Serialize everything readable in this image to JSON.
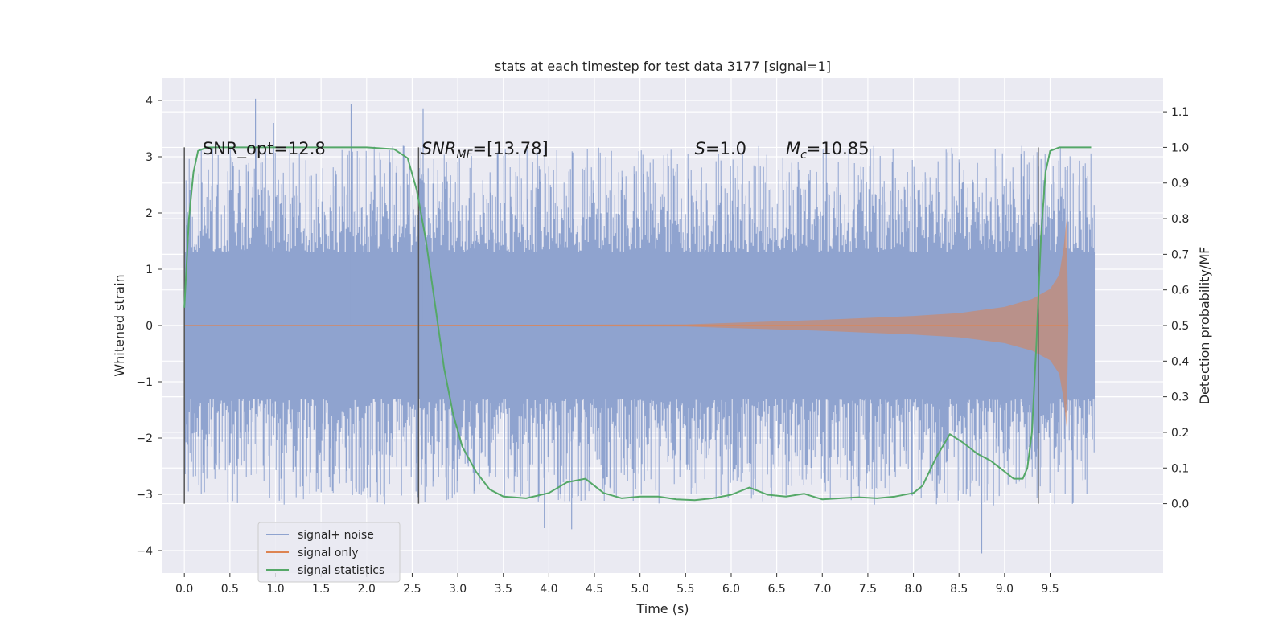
{
  "chart_data": {
    "type": "line",
    "title": "stats at each timestep for test data 3177 [signal=1]",
    "xlabel": "Time (s)",
    "ylabel": "Whitened strain",
    "y2label": "Detection probability/MF",
    "xlim": [
      -0.24,
      10.74
    ],
    "ylim": [
      -4.4,
      4.4
    ],
    "y2lim": [
      -0.195,
      1.195
    ],
    "grid": true,
    "x_ticks": [
      "0.0",
      "0.5",
      "1.0",
      "1.5",
      "2.0",
      "2.5",
      "3.0",
      "3.5",
      "4.0",
      "4.5",
      "5.0",
      "5.5",
      "6.0",
      "6.5",
      "7.0",
      "7.5",
      "8.0",
      "8.5",
      "9.0",
      "9.5"
    ],
    "y_ticks": [
      "4",
      "3",
      "2",
      "1",
      "0",
      "−1",
      "−2",
      "−3",
      "−4"
    ],
    "y2_ticks": [
      "1.1",
      "1.0",
      "0.9",
      "0.8",
      "0.7",
      "0.6",
      "0.5",
      "0.4",
      "0.3",
      "0.2",
      "0.1",
      "0.0"
    ],
    "legend_position": "lower-left",
    "annotations": [
      {
        "label": "SNR_opt=12.8",
        "x": 0.2,
        "y": 3.16
      },
      {
        "label": "SNR",
        "sub": "MF",
        "rest": "=[13.78]",
        "x": 2.6,
        "y": 3.16
      },
      {
        "label": "S",
        "rest": "=1.0",
        "x": 5.6,
        "y": 3.16
      },
      {
        "label": "M",
        "sub": "c",
        "rest": "=10.85",
        "x": 6.6,
        "y": 3.16
      }
    ],
    "vlines": [
      0.0,
      2.57,
      9.37
    ],
    "series": [
      {
        "name": "signal+ noise",
        "color": "#8fa3cf",
        "x_range": [
          0,
          9.99
        ],
        "band_y": [
          -1.3,
          1.3
        ],
        "peaks_y": [
          4.03,
          3.93,
          3.86,
          3.6,
          -3.6,
          -3.62,
          -4.05
        ]
      },
      {
        "name": "signal only",
        "color": "#dd8452",
        "envelope_x": [
          0.0,
          5.5,
          7.0,
          8.0,
          8.5,
          9.0,
          9.3,
          9.5,
          9.6,
          9.65,
          9.68,
          9.7
        ],
        "envelope_y": [
          0.0,
          0.02,
          0.1,
          0.17,
          0.22,
          0.33,
          0.47,
          0.65,
          0.9,
          1.4,
          1.9,
          0.0
        ]
      },
      {
        "name": "signal statistics",
        "color": "#55a868",
        "axis": "right",
        "x": [
          0.0,
          0.05,
          0.1,
          0.15,
          0.25,
          0.5,
          1.0,
          2.0,
          2.3,
          2.45,
          2.55,
          2.65,
          2.75,
          2.85,
          2.95,
          3.05,
          3.2,
          3.35,
          3.5,
          3.75,
          4.0,
          4.2,
          4.4,
          4.6,
          4.8,
          5.0,
          5.2,
          5.4,
          5.6,
          5.8,
          6.0,
          6.2,
          6.4,
          6.6,
          6.8,
          7.0,
          7.2,
          7.4,
          7.6,
          7.8,
          8.0,
          8.1,
          8.25,
          8.4,
          8.55,
          8.7,
          8.85,
          9.0,
          9.1,
          9.2,
          9.25,
          9.3,
          9.35,
          9.4,
          9.45,
          9.5,
          9.6,
          9.75,
          9.95
        ],
        "y": [
          0.55,
          0.8,
          0.93,
          0.99,
          1.0,
          1.0,
          1.0,
          1.0,
          0.995,
          0.97,
          0.88,
          0.74,
          0.56,
          0.38,
          0.25,
          0.16,
          0.09,
          0.04,
          0.02,
          0.015,
          0.03,
          0.06,
          0.07,
          0.03,
          0.015,
          0.02,
          0.02,
          0.012,
          0.01,
          0.015,
          0.025,
          0.045,
          0.025,
          0.02,
          0.028,
          0.012,
          0.015,
          0.018,
          0.015,
          0.02,
          0.03,
          0.05,
          0.13,
          0.195,
          0.17,
          0.14,
          0.12,
          0.09,
          0.07,
          0.07,
          0.1,
          0.2,
          0.45,
          0.75,
          0.93,
          0.99,
          1.0,
          1.0,
          1.0
        ]
      }
    ]
  }
}
